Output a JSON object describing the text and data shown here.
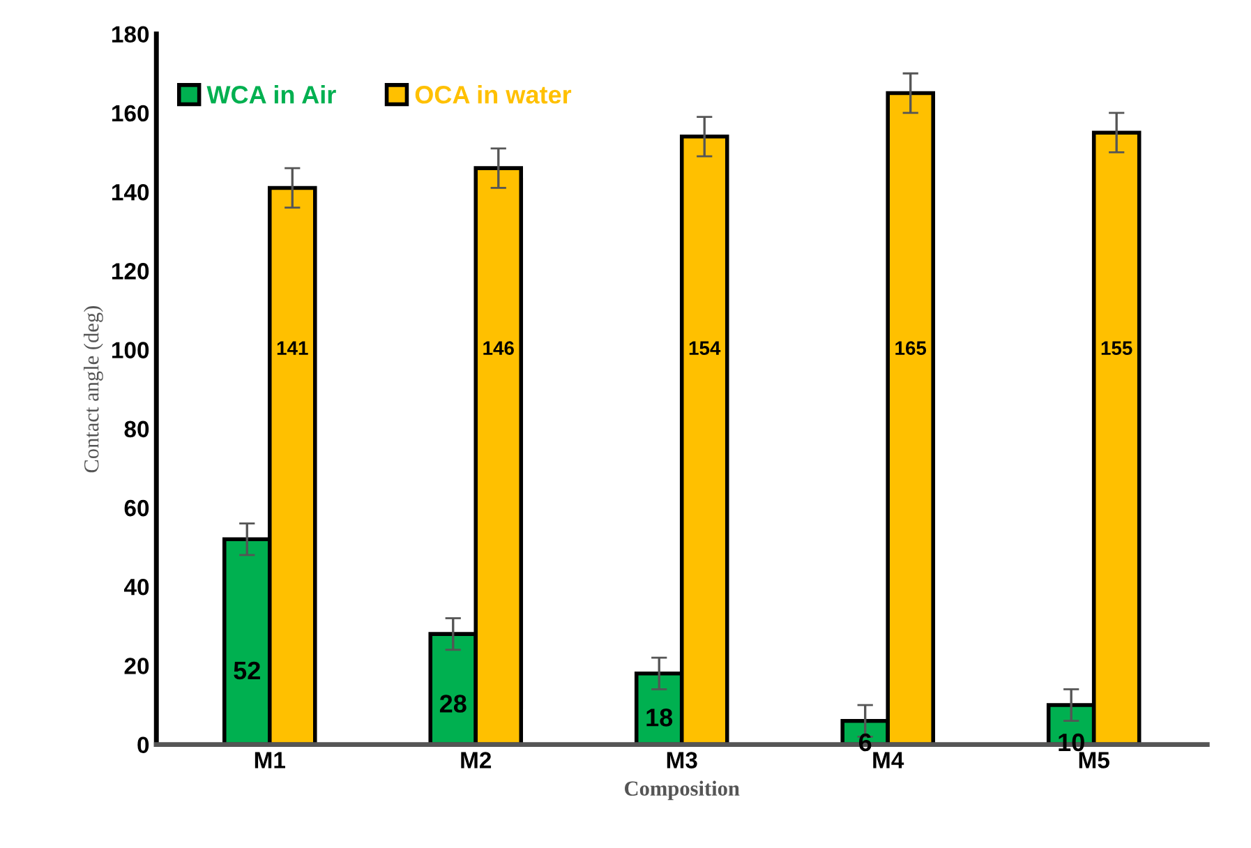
{
  "chart_data": {
    "type": "bar",
    "xlabel": "Composition",
    "ylabel": "Contact angle (deg)",
    "categories": [
      "M1",
      "M2",
      "M3",
      "M4",
      "M5"
    ],
    "series": [
      {
        "name": "WCA in Air",
        "color": "#00b050",
        "values": [
          52,
          28,
          18,
          6,
          10
        ],
        "errors": [
          4,
          4,
          4,
          4,
          4
        ]
      },
      {
        "name": "OCA in water",
        "color": "#ffc000",
        "values": [
          141,
          146,
          154,
          165,
          155
        ],
        "errors": [
          5,
          5,
          5,
          5,
          5
        ]
      }
    ],
    "ylim": [
      0,
      180
    ],
    "yticks": [
      0,
      20,
      40,
      60,
      80,
      100,
      120,
      140,
      160,
      180
    ],
    "grid": false,
    "legend": "top left",
    "data_labels": true
  }
}
